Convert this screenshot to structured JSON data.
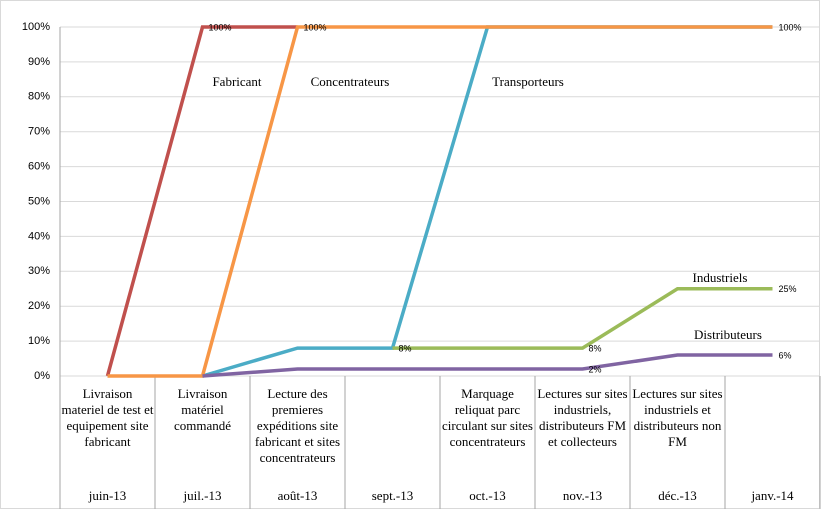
{
  "chart_data": {
    "type": "line",
    "categories": [
      "juin-13",
      "juil.-13",
      "août-13",
      "sept.-13",
      "oct.-13",
      "nov.-13",
      "déc.-13",
      "janv.-14"
    ],
    "descriptions": [
      "Livraison materiel de test et equipement site fabricant",
      "Livraison matériel commandé",
      "Lecture des premieres expéditions site fabricant et sites concentrateurs",
      null,
      "Marquage reliquat parc circulant sur sites concentrateurs",
      "Lectures sur sites industriels, distributeurs FM et collecteurs",
      "Lectures sur sites industriels et distributeurs non FM",
      null
    ],
    "series": [
      {
        "name": "Fabricant",
        "color": "#c0504d",
        "values": [
          0,
          100,
          100,
          null,
          null,
          null,
          null,
          null
        ],
        "value_labels": [
          null,
          "100%",
          null,
          null,
          null,
          null,
          null,
          null
        ]
      },
      {
        "name": "Transporteurs",
        "color": "#4bacc6",
        "values": [
          null,
          0,
          8,
          8,
          100,
          100,
          100,
          100
        ],
        "value_labels": [
          null,
          null,
          null,
          null,
          null,
          null,
          null,
          null
        ]
      },
      {
        "name": "Concentrateurs",
        "color": "#f79646",
        "values": [
          0,
          0,
          100,
          100,
          100,
          100,
          100,
          100
        ],
        "value_labels": [
          null,
          null,
          "100%",
          null,
          null,
          null,
          null,
          "100%"
        ]
      },
      {
        "name": "Industriels",
        "color": "#9bbb59",
        "values": [
          null,
          null,
          null,
          8,
          8,
          8,
          25,
          25
        ],
        "value_labels": [
          null,
          null,
          null,
          "8%",
          null,
          "8%",
          null,
          "25%"
        ]
      },
      {
        "name": "Distributeurs",
        "color": "#8064a2",
        "values": [
          null,
          0,
          2,
          2,
          2,
          2,
          6,
          6
        ],
        "value_labels": [
          null,
          null,
          null,
          null,
          null,
          "2%",
          null,
          "6%"
        ]
      }
    ],
    "ylim": [
      0,
      100
    ],
    "yticks": [
      {
        "value": 0,
        "label": "0%"
      },
      {
        "value": 10,
        "label": "10%"
      },
      {
        "value": 20,
        "label": "20%"
      },
      {
        "value": 30,
        "label": "30%"
      },
      {
        "value": 40,
        "label": "40%"
      },
      {
        "value": 50,
        "label": "50%"
      },
      {
        "value": 60,
        "label": "60%"
      },
      {
        "value": 70,
        "label": "70%"
      },
      {
        "value": 80,
        "label": "80%"
      },
      {
        "value": 90,
        "label": "90%"
      },
      {
        "value": 100,
        "label": "100%"
      }
    ],
    "grid": true
  }
}
